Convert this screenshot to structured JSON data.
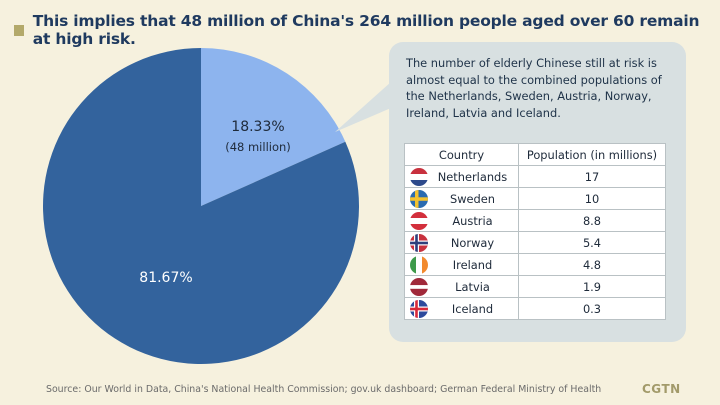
{
  "title": "This implies that 48 million of China's 264 million people aged over 60 remain at high risk.",
  "chart_data": {
    "type": "pie",
    "slices": [
      {
        "label": "18.33%",
        "sublabel": "(48 million)",
        "value": 18.33,
        "color": "#8db4ee"
      },
      {
        "label": "81.67%",
        "sublabel": "",
        "value": 81.67,
        "color": "#33639d"
      }
    ]
  },
  "callout": {
    "text": "The number of elderly Chinese still at risk is almost equal to the combined populations of the Netherlands, Sweden, Austria, Norway, Ireland, Latvia and Iceland.",
    "table": {
      "headers": [
        "Country",
        "Population (in millions)"
      ],
      "rows": [
        {
          "country": "Netherlands",
          "population": "17",
          "flag": "netherlands-flag-icon"
        },
        {
          "country": "Sweden",
          "population": "10",
          "flag": "sweden-flag-icon"
        },
        {
          "country": "Austria",
          "population": "8.8",
          "flag": "austria-flag-icon"
        },
        {
          "country": "Norway",
          "population": "5.4",
          "flag": "norway-flag-icon"
        },
        {
          "country": "Ireland",
          "population": "4.8",
          "flag": "ireland-flag-icon"
        },
        {
          "country": "Latvia",
          "population": "1.9",
          "flag": "latvia-flag-icon"
        },
        {
          "country": "Iceland",
          "population": "0.3",
          "flag": "iceland-flag-icon"
        }
      ]
    }
  },
  "source": "Source: Our World in Data, China's National Health Commission; gov.uk dashboard; German Federal Ministry of Health",
  "logo": "CGTN",
  "colors": {
    "background": "#f6f1de",
    "title": "#1f3a5f",
    "accent": "#b3a96a"
  }
}
